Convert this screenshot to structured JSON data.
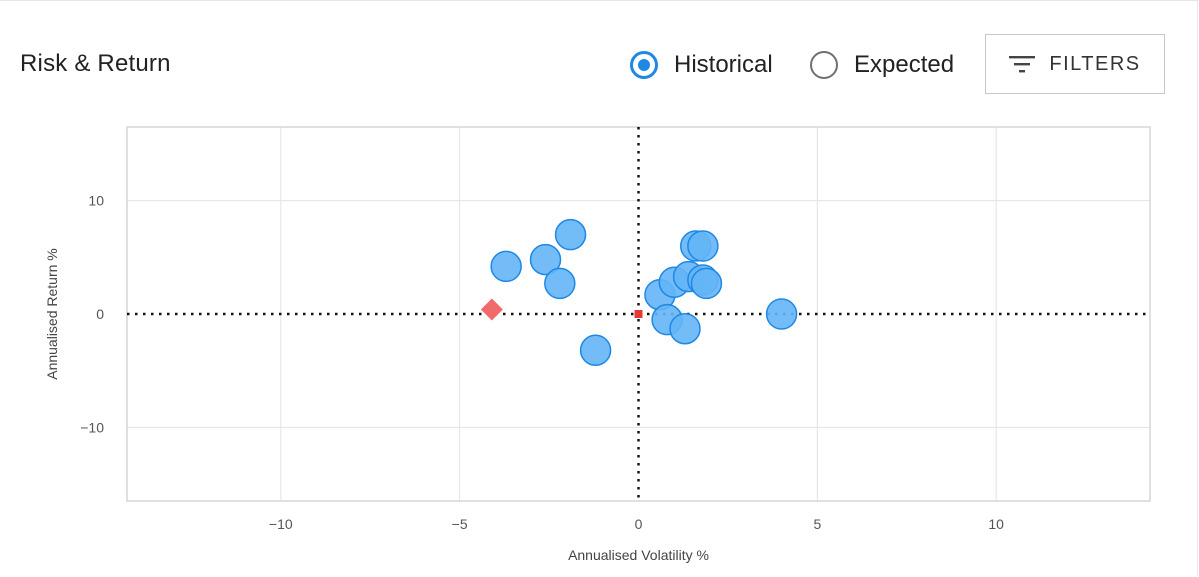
{
  "header": {
    "title": "Risk & Return",
    "radio_historical": "Historical",
    "radio_expected": "Expected",
    "selected": "Historical",
    "filters_label": "FILTERS",
    "filter_icon": "filter-lines-icon"
  },
  "chart_data": {
    "type": "scatter",
    "title": "",
    "xlabel": "Annualised Volatility %",
    "ylabel": "Annualised Return %",
    "xlim": [
      -14.3,
      14.3
    ],
    "ylim": [
      -16.5,
      16.5
    ],
    "xticks": [
      -10,
      -5,
      0,
      5,
      10
    ],
    "yticks": [
      -10,
      0,
      10
    ],
    "xtick_labels": [
      "−10",
      "−5",
      "0",
      "5",
      "10"
    ],
    "ytick_labels": [
      "−10",
      "0",
      "10"
    ],
    "grid": true,
    "colors": {
      "point_fill": "#64b5f6",
      "point_stroke": "#1e88e5",
      "benchmark": "#f26b6b",
      "origin": "#e53935",
      "grid": "#e3e3e3",
      "plot_border": "#cccccc"
    },
    "series": [
      {
        "marker": "circle",
        "points": [
          {
            "x": -1.9,
            "y": 7.0
          },
          {
            "x": -3.7,
            "y": 4.2
          },
          {
            "x": -2.6,
            "y": 4.8
          },
          {
            "x": -2.2,
            "y": 2.7
          },
          {
            "x": -1.2,
            "y": -3.2
          },
          {
            "x": 0.6,
            "y": 1.7
          },
          {
            "x": 1.0,
            "y": 2.8
          },
          {
            "x": 1.4,
            "y": 3.3
          },
          {
            "x": 1.6,
            "y": 6.0
          },
          {
            "x": 1.8,
            "y": 6.0
          },
          {
            "x": 1.8,
            "y": 3.0
          },
          {
            "x": 1.9,
            "y": 2.7
          },
          {
            "x": 0.8,
            "y": -0.5
          },
          {
            "x": 1.3,
            "y": -1.3
          },
          {
            "x": 4.0,
            "y": 0.0
          }
        ]
      },
      {
        "marker": "diamond",
        "points": [
          {
            "x": -4.1,
            "y": 0.4
          }
        ]
      },
      {
        "marker": "square",
        "points": [
          {
            "x": 0.0,
            "y": 0.0
          }
        ]
      }
    ]
  }
}
